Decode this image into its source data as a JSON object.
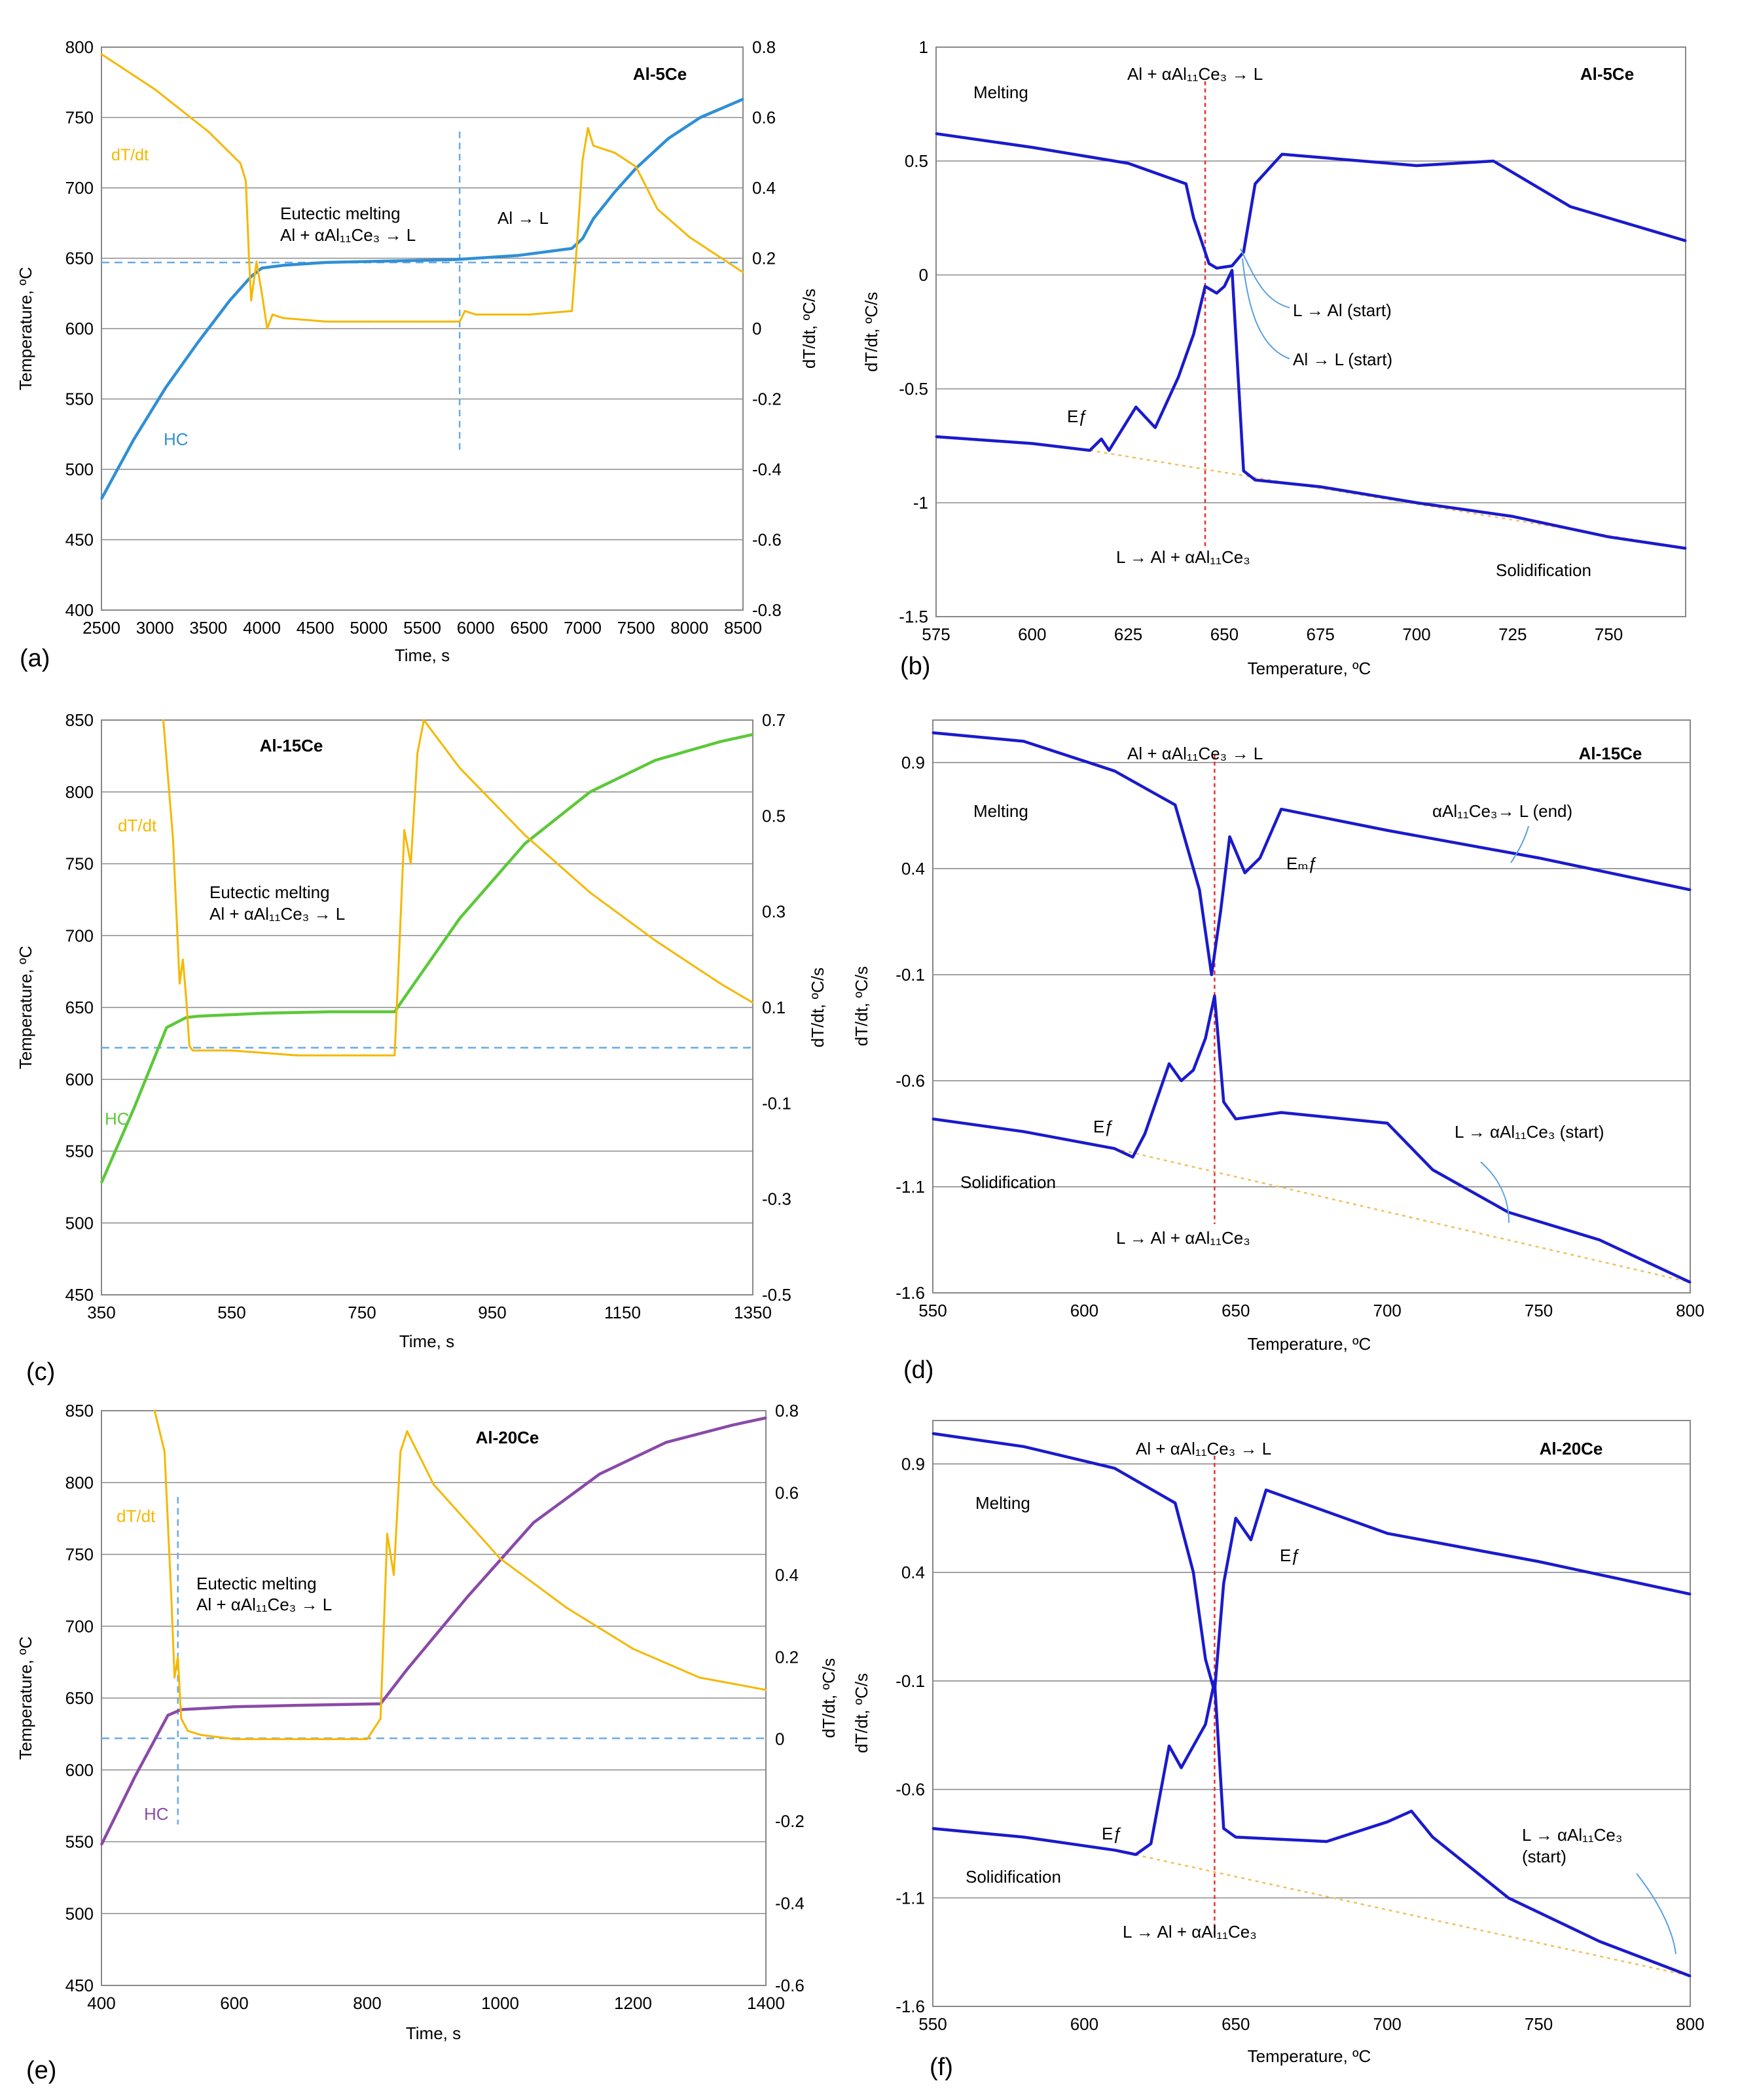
{
  "figure": {
    "panels": [
      "(a)",
      "(b)",
      "(c)",
      "(d)",
      "(e)",
      "(f)"
    ]
  },
  "chart_data": [
    {
      "id": "a",
      "type": "line",
      "label": "(a)",
      "title": "Al-5Ce",
      "xlabel": "Time, s",
      "ylabel": "Temperature, ºC",
      "y2label": "dT/dt, ºC/s",
      "xlim": [
        2500,
        8500
      ],
      "ylim": [
        400,
        800
      ],
      "y2lim": [
        -0.8,
        0.8
      ],
      "xticks": [
        2500,
        3000,
        3500,
        4000,
        4500,
        5000,
        5500,
        6000,
        6500,
        7000,
        7500,
        8000,
        8500
      ],
      "yticks": [
        400,
        450,
        500,
        550,
        600,
        650,
        700,
        750,
        800
      ],
      "y2ticks": [
        -0.8,
        -0.6,
        -0.4,
        -0.2,
        0,
        0.2,
        0.4,
        0.6,
        0.8
      ],
      "colors": {
        "hc": "#2f8fd6",
        "rate": "#f5b800",
        "ref": "#6aaae6"
      },
      "series": [
        {
          "name": "HC",
          "axis": "left",
          "x": [
            2500,
            2800,
            3100,
            3400,
            3700,
            3900,
            4000,
            4200,
            4600,
            5200,
            5800,
            6400,
            6900,
            7000,
            7100,
            7300,
            7500,
            7800,
            8100,
            8500
          ],
          "y": [
            479,
            521,
            558,
            590,
            620,
            637,
            643,
            645,
            647,
            648,
            649,
            652,
            657,
            664,
            678,
            697,
            714,
            735,
            750,
            763
          ]
        },
        {
          "name": "dT/dt",
          "axis": "right",
          "x": [
            2500,
            3000,
            3500,
            3800,
            3850,
            3880,
            3900,
            3950,
            4000,
            4050,
            4100,
            4200,
            4600,
            5000,
            5500,
            5850,
            5900,
            6000,
            6500,
            6900,
            6950,
            7000,
            7050,
            7100,
            7300,
            7500,
            7700,
            8000,
            8300,
            8500
          ],
          "y": [
            0.78,
            0.68,
            0.56,
            0.47,
            0.42,
            0.2,
            0.08,
            0.19,
            0.1,
            0.0,
            0.04,
            0.03,
            0.02,
            0.02,
            0.02,
            0.02,
            0.05,
            0.04,
            0.04,
            0.05,
            0.25,
            0.48,
            0.57,
            0.52,
            0.5,
            0.46,
            0.34,
            0.26,
            0.2,
            0.16
          ]
        }
      ],
      "ref_lines": {
        "horizontal_temp": 647,
        "vertical_time": 5850
      },
      "annotations": [
        "dT/dt",
        "Eutectic melting",
        "Al + αAl₁₁Ce₃ → L",
        "Al → L",
        "HC"
      ]
    },
    {
      "id": "b",
      "type": "line",
      "label": "(b)",
      "title": "Al-5Ce",
      "xlabel": "Temperature, ºC",
      "ylabel": "dT/dt, ºC/s",
      "xlim": [
        575,
        770
      ],
      "ylim": [
        -1.5,
        1
      ],
      "xticks": [
        575,
        600,
        625,
        650,
        675,
        700,
        725,
        750
      ],
      "yticks": [
        -1.5,
        -1,
        -0.5,
        0,
        0.5,
        1
      ],
      "colors": {
        "curve": "#1a1acc",
        "ref": "#e83030",
        "baseline": "#f0c060"
      },
      "series": [
        {
          "name": "Melting",
          "x": [
            575,
            600,
            625,
            640,
            642,
            644,
            646,
            648,
            652,
            655,
            658,
            665,
            700,
            720,
            740,
            770
          ],
          "y": [
            0.62,
            0.56,
            0.49,
            0.4,
            0.25,
            0.15,
            0.05,
            0.03,
            0.04,
            0.1,
            0.4,
            0.53,
            0.48,
            0.5,
            0.3,
            0.15
          ]
        },
        {
          "name": "Solidification",
          "x": [
            575,
            600,
            615,
            618,
            620,
            627,
            632,
            638,
            642,
            645,
            648,
            650,
            652,
            655,
            658,
            675,
            700,
            725,
            750,
            770
          ],
          "y": [
            -0.71,
            -0.74,
            -0.77,
            -0.72,
            -0.77,
            -0.58,
            -0.67,
            -0.45,
            -0.26,
            -0.05,
            -0.08,
            -0.05,
            0.02,
            -0.86,
            -0.9,
            -0.93,
            -1.0,
            -1.06,
            -1.15,
            -1.2
          ]
        }
      ],
      "ref_line_temperature": 645,
      "annotations": [
        "Melting",
        "Al + αAl₁₁Ce₃ → L",
        "L → Al (start)",
        "Al → L (start)",
        "Eƒ",
        "L → Al + αAl₁₁Ce₃",
        "Solidification"
      ]
    },
    {
      "id": "c",
      "type": "line",
      "label": "(c)",
      "title": "Al-15Ce",
      "xlabel": "Time, s",
      "ylabel": "Temperature, ºC",
      "y2label": "dT/dt, ºC/s",
      "xlim": [
        350,
        1350
      ],
      "ylim": [
        450,
        850
      ],
      "y2lim": [
        -0.5,
        0.7
      ],
      "xticks": [
        350,
        550,
        750,
        950,
        1150,
        1350
      ],
      "yticks": [
        450,
        500,
        550,
        600,
        650,
        700,
        750,
        800,
        850
      ],
      "y2ticks": [
        -0.5,
        -0.3,
        -0.1,
        0.1,
        0.3,
        0.5,
        0.7
      ],
      "colors": {
        "hc": "#5cc83a",
        "rate": "#f5b800",
        "ref": "#6aaae6"
      },
      "series": [
        {
          "name": "HC",
          "axis": "left",
          "x": [
            350,
            400,
            450,
            480,
            500,
            600,
            700,
            800,
            820,
            900,
            1000,
            1100,
            1200,
            1300,
            1350
          ],
          "y": [
            528,
            580,
            636,
            643,
            644,
            646,
            647,
            647,
            660,
            712,
            764,
            800,
            822,
            835,
            840
          ]
        },
        {
          "name": "dT/dt",
          "axis": "right",
          "x": [
            445,
            460,
            470,
            475,
            480,
            485,
            490,
            500,
            550,
            650,
            800,
            805,
            815,
            825,
            835,
            845,
            900,
            1000,
            1100,
            1200,
            1300,
            1350
          ],
          "y": [
            0.7,
            0.45,
            0.15,
            0.2,
            0.12,
            0.02,
            0.01,
            0.01,
            0.01,
            0.0,
            0.0,
            0.15,
            0.47,
            0.4,
            0.63,
            0.7,
            0.6,
            0.46,
            0.34,
            0.24,
            0.15,
            0.11
          ]
        }
      ],
      "ref_lines": {
        "horizontal_temp": 622
      },
      "annotations": [
        "dT/dt",
        "Eutectic melting",
        "Al + αAl₁₁Ce₃ → L",
        "HC"
      ]
    },
    {
      "id": "d",
      "type": "line",
      "label": "(d)",
      "title": "Al-15Ce",
      "xlabel": "Temperature, ºC",
      "ylabel": "dT/dt, ºC/s",
      "xlim": [
        550,
        800
      ],
      "ylim": [
        -1.6,
        1.1
      ],
      "xticks": [
        550,
        600,
        650,
        700,
        750,
        800
      ],
      "yticks": [
        -1.6,
        -1.1,
        -0.6,
        -0.1,
        0.4,
        0.9
      ],
      "colors": {
        "curve": "#1a1acc",
        "ref": "#e83030",
        "baseline": "#f0c060"
      },
      "series": [
        {
          "name": "Melting",
          "x": [
            550,
            580,
            610,
            630,
            638,
            642,
            645,
            648,
            653,
            658,
            665,
            700,
            750,
            800
          ],
          "y": [
            1.04,
            1.0,
            0.86,
            0.7,
            0.3,
            -0.1,
            0.2,
            0.55,
            0.38,
            0.45,
            0.68,
            0.58,
            0.45,
            0.3
          ]
        },
        {
          "name": "Solidification",
          "x": [
            550,
            580,
            610,
            616,
            620,
            628,
            632,
            636,
            640,
            643,
            646,
            650,
            665,
            700,
            715,
            740,
            770,
            800
          ],
          "y": [
            -0.78,
            -0.84,
            -0.92,
            -0.96,
            -0.85,
            -0.52,
            -0.6,
            -0.55,
            -0.4,
            -0.2,
            -0.7,
            -0.78,
            -0.75,
            -0.8,
            -1.02,
            -1.22,
            -1.35,
            -1.55
          ]
        }
      ],
      "ref_line_temperature": 643,
      "annotations": [
        "Melting",
        "Al + αAl₁₁Ce₃ → L",
        "αAl₁₁Ce₃→ L (end)",
        "Eₘƒ",
        "Eƒ",
        "L → αAl₁₁Ce₃  (start)",
        "Solidification",
        "L → Al + αAl₁₁Ce₃"
      ]
    },
    {
      "id": "e",
      "type": "line",
      "label": "(e)",
      "title": "Al-20Ce",
      "xlabel": "Time, s",
      "ylabel": "Temperature, ºC",
      "y2label": "dT/dt, ºC/s",
      "xlim": [
        400,
        1400
      ],
      "ylim": [
        450,
        850
      ],
      "y2lim": [
        -0.6,
        0.8
      ],
      "xticks": [
        400,
        600,
        800,
        1000,
        1200,
        1400
      ],
      "yticks": [
        450,
        500,
        550,
        600,
        650,
        700,
        750,
        800,
        850
      ],
      "y2ticks": [
        -0.6,
        -0.4,
        -0.2,
        0,
        0.2,
        0.4,
        0.6,
        0.8
      ],
      "colors": {
        "hc": "#8a4aa8",
        "rate": "#f5b800",
        "ref": "#6aaae6"
      },
      "series": [
        {
          "name": "HC",
          "axis": "left",
          "x": [
            400,
            450,
            500,
            520,
            600,
            700,
            820,
            860,
            950,
            1050,
            1150,
            1250,
            1350,
            1400
          ],
          "y": [
            548,
            595,
            638,
            642,
            644,
            645,
            646,
            670,
            720,
            772,
            806,
            828,
            840,
            845
          ]
        },
        {
          "name": "dT/dt",
          "axis": "right",
          "x": [
            480,
            495,
            505,
            510,
            515,
            520,
            530,
            550,
            600,
            800,
            820,
            830,
            840,
            850,
            860,
            900,
            1000,
            1100,
            1200,
            1300,
            1400
          ],
          "y": [
            0.8,
            0.7,
            0.35,
            0.15,
            0.2,
            0.05,
            0.02,
            0.01,
            0.0,
            0.0,
            0.05,
            0.5,
            0.4,
            0.7,
            0.75,
            0.62,
            0.44,
            0.32,
            0.22,
            0.15,
            0.12
          ]
        }
      ],
      "ref_lines": {
        "horizontal_temp": 622,
        "vertical_time": 515
      },
      "annotations": [
        "dT/dt",
        "Eutectic melting",
        "Al + αAl₁₁Ce₃ → L",
        "HC"
      ]
    },
    {
      "id": "f",
      "type": "line",
      "label": "(f)",
      "title": "Al-20Ce",
      "xlabel": "Temperature, ºC",
      "ylabel": "dT/dt, ºC/s",
      "xlim": [
        550,
        800
      ],
      "ylim": [
        -1.6,
        1.1
      ],
      "xticks": [
        550,
        600,
        650,
        700,
        750,
        800
      ],
      "yticks": [
        -1.6,
        -1.1,
        -0.6,
        -0.1,
        0.4,
        0.9
      ],
      "colors": {
        "curve": "#1a1acc",
        "ref": "#e83030",
        "baseline": "#f0c060"
      },
      "series": [
        {
          "name": "Melting",
          "x": [
            550,
            580,
            610,
            630,
            636,
            640,
            643,
            646,
            650,
            655,
            660,
            700,
            750,
            800
          ],
          "y": [
            1.04,
            0.98,
            0.88,
            0.72,
            0.4,
            0.0,
            -0.15,
            0.35,
            0.65,
            0.55,
            0.78,
            0.58,
            0.45,
            0.3
          ]
        },
        {
          "name": "Solidification",
          "x": [
            550,
            580,
            610,
            617,
            622,
            628,
            632,
            636,
            640,
            643,
            646,
            650,
            680,
            700,
            708,
            715,
            740,
            770,
            800
          ],
          "y": [
            -0.78,
            -0.82,
            -0.88,
            -0.9,
            -0.85,
            -0.4,
            -0.5,
            -0.4,
            -0.3,
            -0.1,
            -0.78,
            -0.82,
            -0.84,
            -0.75,
            -0.7,
            -0.82,
            -1.1,
            -1.3,
            -1.46
          ]
        }
      ],
      "ref_line_temperature": 643,
      "annotations": [
        "Melting",
        "Al + αAl₁₁Ce₃ → L",
        "Eƒ",
        "Eƒ",
        "Solidification",
        "L → αAl₁₁Ce₃",
        "(start)",
        "L → Al + αAl₁₁Ce₃"
      ]
    }
  ]
}
